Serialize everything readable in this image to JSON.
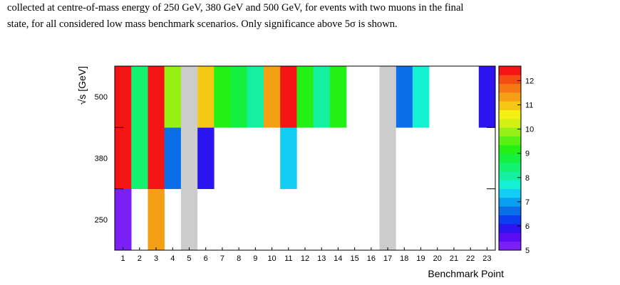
{
  "caption": {
    "line1": "collected at centre-of-mass energy of 250 GeV, 380 GeV and 500 GeV, for events with two muons in the final",
    "line2": "state, for all considered low mass benchmark scenarios. Only significance above 5σ is shown."
  },
  "chart_data": {
    "type": "heatmap",
    "xlabel": "Benchmark Point",
    "ylabel": "√s  [GeV]",
    "x_categories": [
      "1",
      "2",
      "3",
      "4",
      "5",
      "6",
      "7",
      "8",
      "9",
      "10",
      "11",
      "12",
      "13",
      "14",
      "15",
      "16",
      "17",
      "18",
      "19",
      "20",
      "21",
      "22",
      "23"
    ],
    "y_categories": [
      "250",
      "380",
      "500"
    ],
    "colorbar": {
      "range": [
        5,
        12.6
      ],
      "ticks": [
        "5",
        "6",
        "7",
        "8",
        "9",
        "10",
        "11",
        "12"
      ]
    },
    "excluded_points": [
      "5",
      "17"
    ],
    "excluded_color": "#cccccc",
    "palette": [
      "#7a1ff5",
      "#5a0cf5",
      "#2a14f0",
      "#0a3ef0",
      "#0a6ee8",
      "#0a9ef0",
      "#14cdf5",
      "#14f0d2",
      "#14f0a0",
      "#14f070",
      "#14f040",
      "#23f014",
      "#5af014",
      "#96f014",
      "#d2f014",
      "#f5f014",
      "#f5c814",
      "#f5a014",
      "#f57814",
      "#f54b14",
      "#f51414"
    ],
    "values": {
      "500": [
        12.6,
        8.6,
        12.6,
        9.8,
        null,
        11.0,
        9.2,
        8.8,
        8.0,
        11.5,
        12.6,
        9.2,
        8.0,
        9.2,
        null,
        null,
        null,
        6.8,
        7.6,
        null,
        null,
        null,
        6.0
      ],
      "380": [
        12.6,
        8.6,
        12.6,
        6.8,
        null,
        6.0,
        null,
        null,
        null,
        null,
        7.2,
        null,
        null,
        null,
        null,
        null,
        null,
        null,
        null,
        null,
        null,
        null,
        null
      ],
      "250": [
        5.3,
        null,
        11.2,
        null,
        null,
        null,
        null,
        null,
        null,
        null,
        null,
        null,
        null,
        null,
        null,
        null,
        null,
        null,
        null,
        null,
        null,
        null,
        null
      ]
    }
  }
}
